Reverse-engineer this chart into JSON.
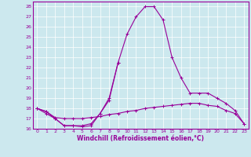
{
  "xlabel": "Windchill (Refroidissement éolien,°C)",
  "background_color": "#cce8ee",
  "line_color": "#990099",
  "grid_color": "#ffffff",
  "xlim": [
    -0.5,
    23.5
  ],
  "ylim": [
    16,
    28.5
  ],
  "xticks": [
    0,
    1,
    2,
    3,
    4,
    5,
    6,
    7,
    8,
    9,
    10,
    11,
    12,
    13,
    14,
    15,
    16,
    17,
    18,
    19,
    20,
    21,
    22,
    23
  ],
  "yticks": [
    16,
    17,
    18,
    19,
    20,
    21,
    22,
    23,
    24,
    25,
    26,
    27,
    28
  ],
  "x_full": [
    0,
    1,
    2,
    3,
    4,
    5,
    6,
    7,
    8,
    9,
    10,
    11,
    12,
    13,
    14,
    15,
    16,
    17,
    18,
    19,
    20,
    21,
    22,
    23
  ],
  "x_short": [
    0,
    1,
    2,
    3,
    4,
    5,
    6,
    7,
    8,
    9
  ],
  "line1_y": [
    18.0,
    17.7,
    17.0,
    16.3,
    16.3,
    16.2,
    16.3,
    17.5,
    18.8,
    22.5
  ],
  "line2_y": [
    18.0,
    17.7,
    17.1,
    17.0,
    17.0,
    17.0,
    17.1,
    17.2,
    17.4,
    17.5,
    17.7,
    17.8,
    18.0,
    18.1,
    18.2,
    18.3,
    18.4,
    18.5,
    18.5,
    18.3,
    18.2,
    17.8,
    17.5,
    16.5
  ],
  "line3_y": [
    18.0,
    17.5,
    17.0,
    16.3,
    16.3,
    16.3,
    16.5,
    17.5,
    19.0,
    22.5,
    25.3,
    27.0,
    28.0,
    28.0,
    26.7,
    23.0,
    21.0,
    19.5,
    19.5,
    19.5,
    19.0,
    18.5,
    17.8,
    16.5
  ]
}
